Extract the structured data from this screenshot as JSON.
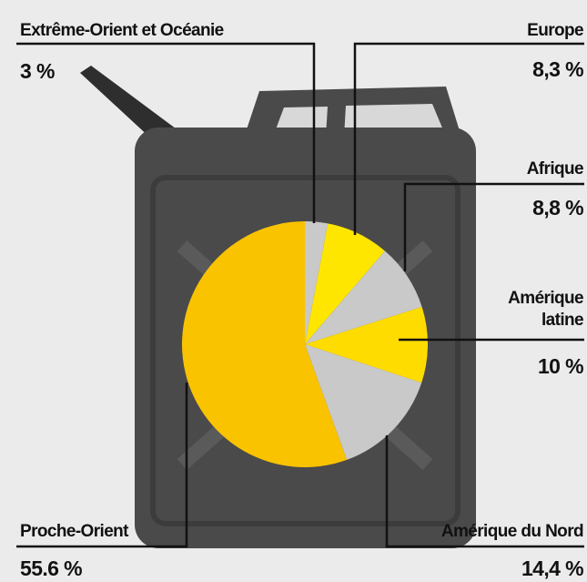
{
  "chart_data": {
    "type": "pie",
    "categories": [
      "Extrême-Orient et Océanie",
      "Europe",
      "Afrique",
      "Amérique latine",
      "Amérique du Nord",
      "Proche-Orient"
    ],
    "values": [
      3,
      8.3,
      8.8,
      10,
      14.4,
      55.6
    ],
    "value_labels": [
      "3 %",
      "8,3 %",
      "8,8 %",
      "10 %",
      "14,4 %",
      "55.6 %"
    ],
    "colors": [
      "#c9c9c9",
      "#ffe600",
      "#c9c9c9",
      "#ffdc00",
      "#c9c9c9",
      "#f9c300"
    ]
  }
}
